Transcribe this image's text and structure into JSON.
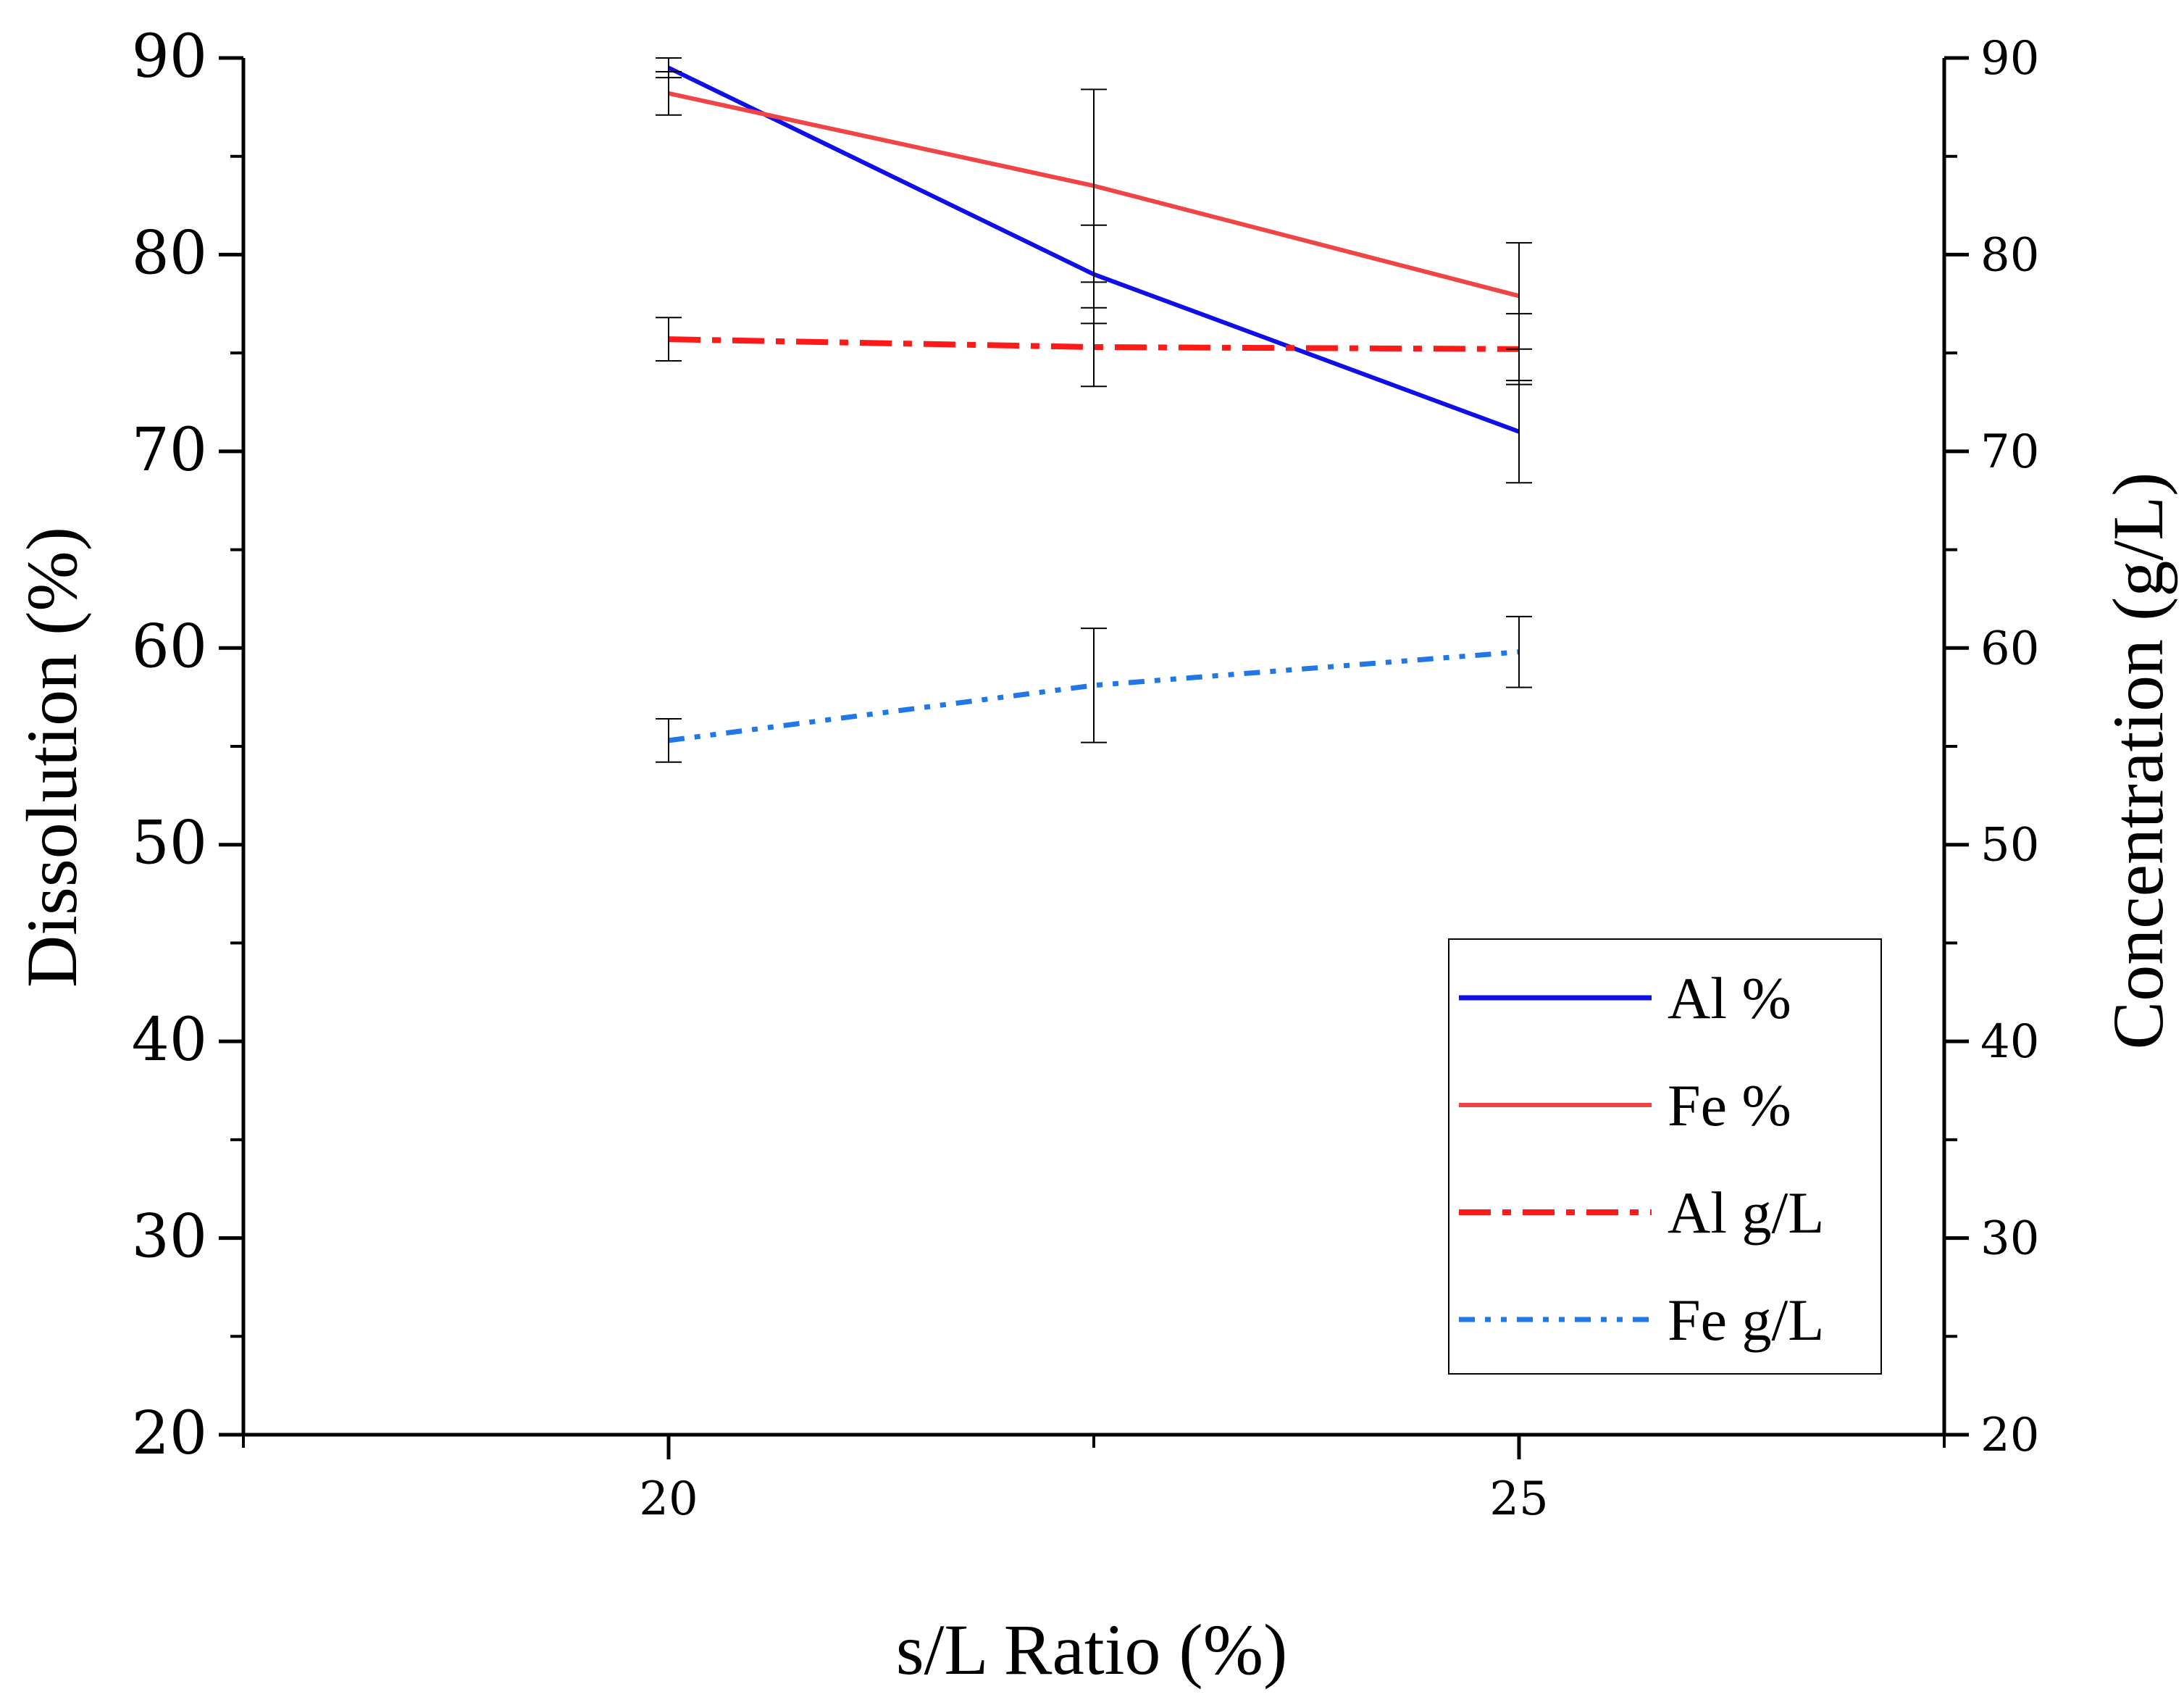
{
  "chart_data": {
    "type": "line",
    "x": [
      20,
      22.5,
      25
    ],
    "xticks": [
      20,
      25
    ],
    "xlabel": "s/L Ratio (%)",
    "ylabel": "Dissolution (%)",
    "y2label": "Concentration (g/L)",
    "xlim": [
      17.5,
      27.5
    ],
    "ylim": [
      20,
      90
    ],
    "y2lim": [
      20,
      90
    ],
    "yticks": [
      20,
      30,
      40,
      50,
      60,
      70,
      80,
      90
    ],
    "y2ticks": [
      20,
      30,
      40,
      50,
      60,
      70,
      80,
      90
    ],
    "legend_position": "bottom-right",
    "series": [
      {
        "name": "Al %",
        "axis": "left",
        "color": "#1010e6",
        "style": "solid",
        "values": [
          89.5,
          79.0,
          71.0
        ],
        "errors": [
          0.5,
          2.5,
          2.6
        ]
      },
      {
        "name": "Fe %",
        "axis": "left",
        "color": "#ef4545",
        "style": "solid",
        "values": [
          88.2,
          83.5,
          77.9
        ],
        "errors": [
          1.1,
          4.9,
          2.7
        ]
      },
      {
        "name": "Al g/L",
        "axis": "right",
        "color": "#ff1a1a",
        "style": "dashdot",
        "values": [
          75.7,
          75.3,
          75.2
        ],
        "errors": [
          1.1,
          2.0,
          1.8
        ]
      },
      {
        "name": "Fe g/L",
        "axis": "right",
        "color": "#2277e6",
        "style": "dashdotdot",
        "values": [
          55.3,
          58.1,
          59.8
        ],
        "errors": [
          1.1,
          2.9,
          1.8
        ]
      }
    ]
  }
}
